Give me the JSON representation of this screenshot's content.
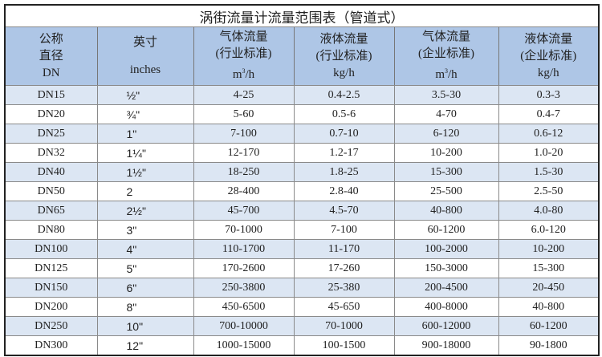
{
  "title": "涡街流量计流量范围表（管道式）",
  "headers": [
    {
      "l1": "公称",
      "l2": "直径",
      "l3": "DN"
    },
    {
      "l1": "英寸",
      "l3": "inches"
    },
    {
      "l1": "气体流量",
      "l2": "(行业标准)",
      "unit_base": "m",
      "unit_sup": "3",
      "unit_tail": "/h"
    },
    {
      "l1": "液体流量",
      "l2": "(行业标准)",
      "l3": "kg/h"
    },
    {
      "l1": "气体流量",
      "l2": "(企业标准)",
      "unit_base": "m",
      "unit_sup": "3",
      "unit_tail": "/h"
    },
    {
      "l1": "液体流量",
      "l2": "(企业标准)",
      "l3": "kg/h"
    }
  ],
  "rows": [
    [
      "DN15",
      "½\"",
      "4-25",
      "0.4-2.5",
      "3.5-30",
      "0.3-3"
    ],
    [
      "DN20",
      "¾\"",
      "5-60",
      "0.5-6",
      "4-70",
      "0.4-7"
    ],
    [
      "DN25",
      "1\"",
      "7-100",
      "0.7-10",
      "6-120",
      "0.6-12"
    ],
    [
      "DN32",
      "1¼\"",
      "12-170",
      "1.2-17",
      "10-200",
      "1.0-20"
    ],
    [
      "DN40",
      "1½\"",
      "18-250",
      "1.8-25",
      "15-300",
      "1.5-30"
    ],
    [
      "DN50",
      "2",
      "28-400",
      "2.8-40",
      "25-500",
      "2.5-50"
    ],
    [
      "DN65",
      "2½\"",
      "45-700",
      "4.5-70",
      "40-800",
      "4.0-80"
    ],
    [
      "DN80",
      "3\"",
      "70-1000",
      "7-100",
      "60-1200",
      "6.0-120"
    ],
    [
      "DN100",
      "4\"",
      "110-1700",
      "11-170",
      "100-2000",
      "10-200"
    ],
    [
      "DN125",
      "5\"",
      "170-2600",
      "17-260",
      "150-3000",
      "15-300"
    ],
    [
      "DN150",
      "6\"",
      "250-3800",
      "25-380",
      "200-4500",
      "20-450"
    ],
    [
      "DN200",
      "8\"",
      "450-6500",
      "45-650",
      "400-8000",
      "40-800"
    ],
    [
      "DN250",
      "10\"",
      "700-10000",
      "70-1000",
      "600-12000",
      "60-1200"
    ],
    [
      "DN300",
      "12\"",
      "1000-15000",
      "100-1500",
      "900-18000",
      "90-1800"
    ]
  ]
}
